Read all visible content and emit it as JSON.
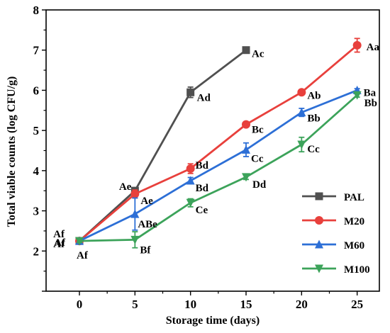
{
  "chart_data": {
    "type": "line",
    "xlabel": "Storage time (days)",
    "ylabel": "Total viable counts (log CFU/g)",
    "xlim": [
      -3,
      27
    ],
    "ylim": [
      1,
      8
    ],
    "xticks": [
      0,
      5,
      10,
      15,
      20,
      25
    ],
    "yticks": [
      1,
      2,
      3,
      4,
      5,
      6,
      7,
      8
    ],
    "ytick_labels_shown": [
      2,
      3,
      4,
      5,
      6,
      7,
      8
    ],
    "grid": false,
    "legend_position": "lower-right",
    "series": [
      {
        "name": "PAL",
        "color": "#505050",
        "marker": "square",
        "x": [
          0,
          5,
          10,
          15
        ],
        "y": [
          2.25,
          3.5,
          5.95,
          7.0
        ],
        "err": [
          0.05,
          0.08,
          0.13,
          0.03
        ],
        "labels": [
          "Af",
          "Ae",
          "Ad",
          "Ac"
        ]
      },
      {
        "name": "M20",
        "color": "#e8403c",
        "marker": "circle",
        "x": [
          0,
          5,
          10,
          15,
          20,
          25
        ],
        "y": [
          2.25,
          3.42,
          4.05,
          5.15,
          5.95,
          7.12
        ],
        "err": [
          0.04,
          0.1,
          0.12,
          0.04,
          0.03,
          0.17
        ],
        "labels": [
          "Af",
          "Ae",
          "Bd",
          "Bc",
          "Ab",
          "Aa"
        ]
      },
      {
        "name": "M60",
        "color": "#2d6fd6",
        "marker": "triangle-up",
        "x": [
          0,
          5,
          10,
          15,
          20,
          25
        ],
        "y": [
          2.25,
          2.92,
          3.75,
          4.52,
          5.45,
          6.0
        ],
        "err": [
          0.04,
          0.4,
          0.08,
          0.17,
          0.1,
          0.04
        ],
        "labels": [
          "Af",
          "ABe",
          "Bd",
          "Cc",
          "Bb",
          "Ba"
        ]
      },
      {
        "name": "M100",
        "color": "#3ca35a",
        "marker": "triangle-down",
        "x": [
          0,
          5,
          10,
          15,
          20,
          25
        ],
        "y": [
          2.25,
          2.28,
          3.2,
          3.84,
          4.65,
          5.88
        ],
        "err": [
          0.04,
          0.2,
          0.1,
          0.06,
          0.18,
          0.05
        ],
        "labels": [
          "Af",
          "Bf",
          "Ce",
          "Dd",
          "Cc",
          "Bb"
        ]
      }
    ]
  }
}
